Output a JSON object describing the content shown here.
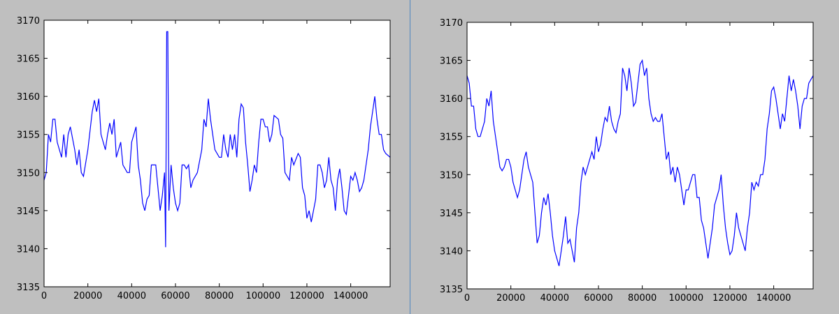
{
  "chart_data": [
    {
      "type": "line",
      "color": "#0000ff",
      "xlim": [
        0,
        158000
      ],
      "ylim": [
        3135,
        3170
      ],
      "xticks": [
        0,
        20000,
        40000,
        60000,
        80000,
        100000,
        120000,
        140000
      ],
      "yticks": [
        3135,
        3140,
        3145,
        3150,
        3155,
        3160,
        3165,
        3170
      ],
      "x": [
        0,
        1000,
        2000,
        3000,
        4000,
        5000,
        6000,
        8000,
        9000,
        10000,
        11000,
        12000,
        14000,
        15000,
        16000,
        17000,
        18000,
        20000,
        22000,
        23000,
        24000,
        25000,
        26000,
        27000,
        28000,
        29000,
        30000,
        31000,
        32000,
        33000,
        34000,
        35000,
        36000,
        37000,
        38000,
        39000,
        40000,
        42000,
        43000,
        44000,
        45000,
        46000,
        47000,
        48000,
        49000,
        50000,
        51000,
        52000,
        53000,
        54000,
        55000,
        55500,
        56000,
        56500,
        57000,
        58000,
        59000,
        60000,
        61000,
        62000,
        63000,
        64000,
        65000,
        66000,
        67000,
        68000,
        70000,
        72000,
        73000,
        74000,
        75000,
        76000,
        78000,
        80000,
        81000,
        82000,
        83000,
        84000,
        85000,
        86000,
        87000,
        88000,
        89000,
        90000,
        91000,
        92000,
        93000,
        94000,
        95000,
        96000,
        97000,
        98000,
        99000,
        100000,
        101000,
        102000,
        103000,
        104000,
        105000,
        107000,
        108000,
        109000,
        110000,
        111000,
        112000,
        113000,
        114000,
        116000,
        117000,
        118000,
        119000,
        120000,
        121000,
        122000,
        123000,
        124000,
        125000,
        126000,
        127000,
        128000,
        129000,
        130000,
        131000,
        132000,
        133000,
        134000,
        135000,
        136000,
        137000,
        138000,
        139000,
        140000,
        141000,
        142000,
        143000,
        144000,
        145000,
        146000,
        148000,
        149000,
        150000,
        151000,
        152000,
        153000,
        154000,
        155000,
        156000,
        158000
      ],
      "values": [
        3149,
        3150,
        3155,
        3154,
        3157,
        3157,
        3154,
        3152,
        3155,
        3152,
        3155,
        3156,
        3153,
        3151,
        3153,
        3150,
        3149.5,
        3153,
        3158,
        3159.5,
        3158,
        3159.7,
        3155,
        3154,
        3153,
        3155,
        3156.5,
        3155,
        3157,
        3152,
        3153,
        3154,
        3151,
        3150.5,
        3150,
        3150,
        3154,
        3156,
        3151,
        3149,
        3146,
        3145,
        3146.5,
        3147,
        3151,
        3151,
        3151,
        3148,
        3145,
        3147,
        3150,
        3140.2,
        3168.5,
        3168.5,
        3145,
        3151,
        3148,
        3146,
        3145,
        3146,
        3151,
        3151,
        3150.5,
        3151,
        3148,
        3149,
        3150,
        3153,
        3157,
        3156,
        3159.7,
        3157,
        3153,
        3152,
        3152,
        3155,
        3153,
        3152,
        3155,
        3153,
        3155,
        3152,
        3157,
        3159,
        3158.5,
        3154,
        3151,
        3147.5,
        3149,
        3151,
        3150,
        3154,
        3157,
        3157,
        3156,
        3156,
        3154,
        3155,
        3157.5,
        3157,
        3155,
        3154.5,
        3150,
        3149.5,
        3149,
        3152,
        3151,
        3152.5,
        3152,
        3148,
        3147,
        3144,
        3145,
        3143.5,
        3145,
        3146.5,
        3151,
        3151,
        3150,
        3148,
        3149,
        3152,
        3149,
        3148,
        3145,
        3149,
        3150.5,
        3148,
        3145,
        3144.5,
        3147,
        3149.5,
        3149,
        3150,
        3149,
        3147.5,
        3148,
        3149,
        3153,
        3156,
        3158,
        3160,
        3157,
        3155,
        3155,
        3153,
        3152.5,
        3152
      ]
    },
    {
      "type": "line",
      "color": "#0000ff",
      "xlim": [
        0,
        158000
      ],
      "ylim": [
        3135,
        3170
      ],
      "xticks": [
        0,
        20000,
        40000,
        60000,
        80000,
        100000,
        120000,
        140000
      ],
      "yticks": [
        3135,
        3140,
        3145,
        3150,
        3155,
        3160,
        3165,
        3170
      ],
      "x": [
        0,
        1000,
        2000,
        3000,
        4000,
        5000,
        6000,
        7000,
        8000,
        9000,
        10000,
        11000,
        12000,
        13000,
        14000,
        15000,
        16000,
        17000,
        18000,
        19000,
        20000,
        21000,
        22000,
        23000,
        24000,
        25000,
        26000,
        27000,
        28000,
        29000,
        30000,
        31000,
        32000,
        33000,
        34000,
        35000,
        36000,
        37000,
        38000,
        39000,
        40000,
        41000,
        42000,
        43000,
        44000,
        45000,
        46000,
        47000,
        48000,
        49000,
        50000,
        51000,
        52000,
        53000,
        54000,
        55000,
        56000,
        57000,
        58000,
        59000,
        60000,
        61000,
        62000,
        63000,
        64000,
        65000,
        66000,
        67000,
        68000,
        69000,
        70000,
        71000,
        72000,
        73000,
        74000,
        75000,
        76000,
        77000,
        78000,
        79000,
        80000,
        81000,
        82000,
        83000,
        84000,
        85000,
        86000,
        87000,
        88000,
        89000,
        90000,
        91000,
        92000,
        93000,
        94000,
        95000,
        96000,
        97000,
        98000,
        99000,
        100000,
        101000,
        102000,
        103000,
        104000,
        105000,
        106000,
        107000,
        108000,
        109000,
        110000,
        111000,
        112000,
        113000,
        114000,
        115000,
        116000,
        117000,
        118000,
        119000,
        120000,
        121000,
        122000,
        123000,
        124000,
        125000,
        126000,
        127000,
        128000,
        129000,
        130000,
        131000,
        132000,
        133000,
        134000,
        135000,
        136000,
        137000,
        138000,
        139000,
        140000,
        141000,
        142000,
        143000,
        144000,
        145000,
        146000,
        147000,
        148000,
        149000,
        150000,
        151000,
        152000,
        153000,
        154000,
        155000,
        156000,
        158000
      ],
      "values": [
        3163,
        3162,
        3159,
        3159,
        3156,
        3155,
        3155,
        3156,
        3157,
        3160,
        3159,
        3161,
        3157,
        3155,
        3153,
        3151,
        3150.5,
        3151,
        3152,
        3152,
        3151,
        3149,
        3148,
        3147,
        3148,
        3150,
        3152,
        3153,
        3151,
        3150,
        3149,
        3145,
        3141,
        3142,
        3145,
        3147,
        3146,
        3147.5,
        3145,
        3142,
        3140,
        3139,
        3138,
        3140,
        3142,
        3144.5,
        3141,
        3141.5,
        3140,
        3138.5,
        3143,
        3145,
        3149,
        3151,
        3150,
        3151,
        3152,
        3153,
        3152,
        3155,
        3153,
        3154,
        3156,
        3157.5,
        3157,
        3159,
        3157,
        3156,
        3155.5,
        3157,
        3158,
        3164,
        3163,
        3161,
        3164,
        3162,
        3159,
        3159.5,
        3162,
        3164.5,
        3165,
        3163,
        3164,
        3160,
        3158,
        3157,
        3157.5,
        3157,
        3157,
        3158,
        3155,
        3152,
        3153,
        3150,
        3151,
        3149,
        3151,
        3150,
        3148,
        3146,
        3148,
        3148,
        3149,
        3150,
        3150,
        3147,
        3147,
        3144,
        3143,
        3141,
        3139,
        3141,
        3143,
        3146,
        3147,
        3148,
        3150,
        3146,
        3143,
        3141,
        3139.5,
        3140,
        3142,
        3145,
        3143,
        3142,
        3141,
        3140,
        3143,
        3145,
        3149,
        3148,
        3149,
        3148.5,
        3150,
        3150,
        3152,
        3156,
        3158,
        3161,
        3161.5,
        3160,
        3158,
        3156,
        3158,
        3157,
        3160,
        3163,
        3161,
        3162.5,
        3161,
        3159,
        3156,
        3159,
        3160,
        3160,
        3162,
        3163
      ]
    }
  ]
}
